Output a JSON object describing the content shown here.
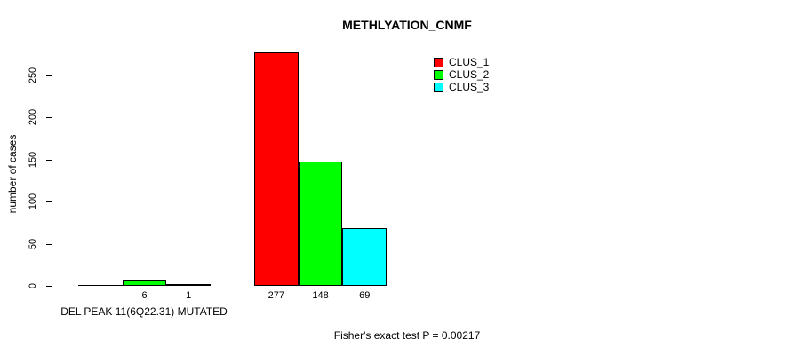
{
  "chart_data": {
    "type": "bar",
    "title": "METHLYATION_CNMF",
    "ylabel": "number of cases",
    "xlabel": "DEL PEAK 11(6Q22.31) MUTATED",
    "annotation": "Fisher's exact test P = 0.00217",
    "categories": [
      "DEL PEAK 11(6Q22.31) MUTATED",
      ""
    ],
    "series": [
      {
        "name": "CLUS_1",
        "color": "#ff0000",
        "values": [
          0,
          277
        ]
      },
      {
        "name": "CLUS_2",
        "color": "#00ff00",
        "values": [
          6,
          148
        ]
      },
      {
        "name": "CLUS_3",
        "color": "#00ffff",
        "values": [
          1,
          69
        ]
      }
    ],
    "bar_labels": [
      [
        "",
        "277"
      ],
      [
        "6",
        "148"
      ],
      [
        "1",
        "69"
      ]
    ],
    "yticks": [
      0,
      50,
      100,
      150,
      200,
      250
    ],
    "ylim": [
      0,
      277
    ],
    "legend_entries": [
      "CLUS_1",
      "CLUS_2",
      "CLUS_3"
    ],
    "legend_position": "upper-right-inside",
    "grid": false,
    "background": "#ffffff",
    "axis_color": "#000000",
    "bar_border_color": "#000000"
  }
}
